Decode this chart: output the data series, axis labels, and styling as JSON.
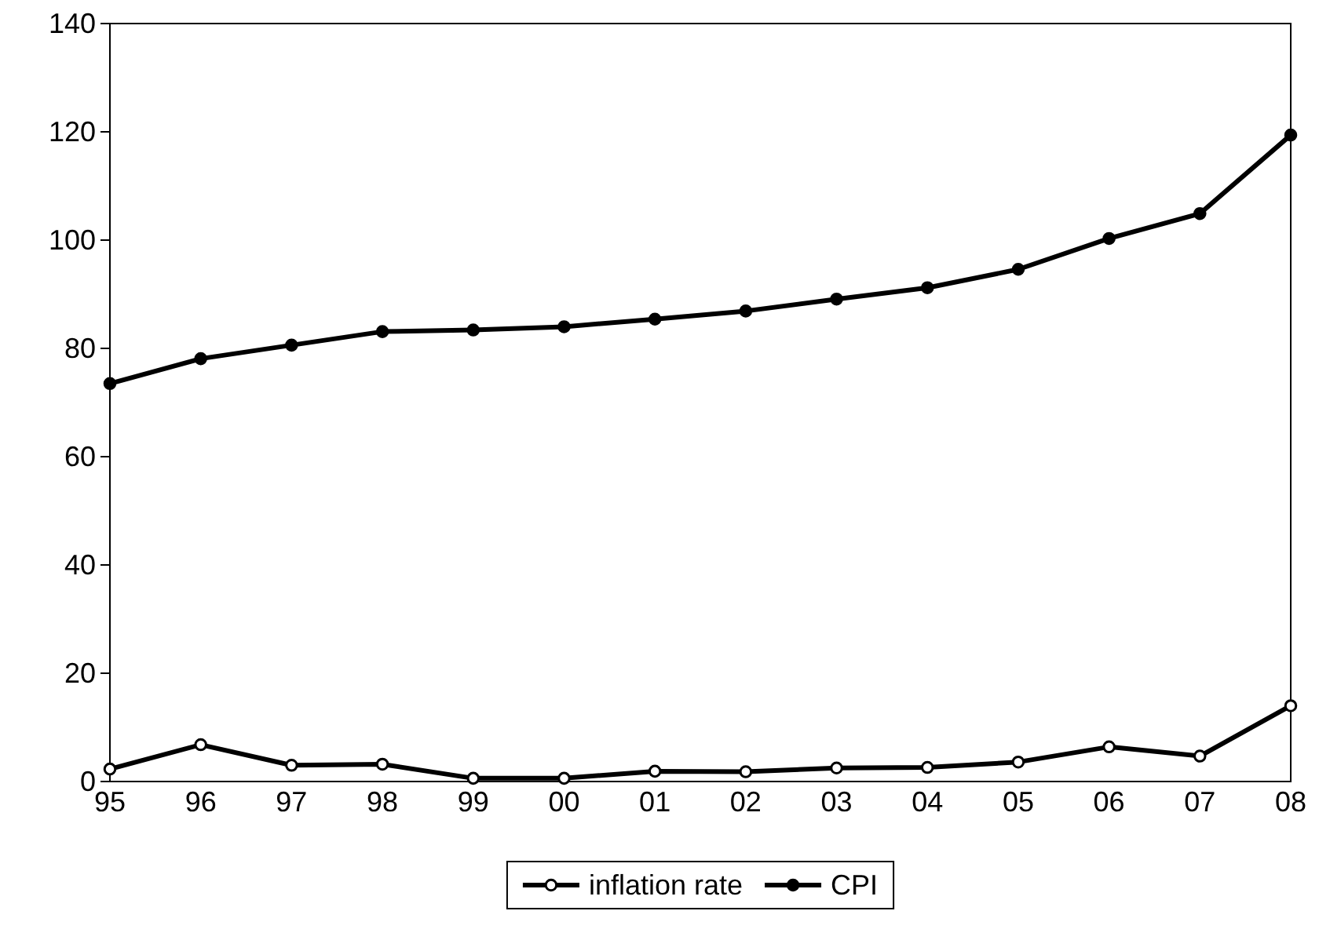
{
  "chart_data": {
    "type": "line",
    "categories": [
      "95",
      "96",
      "97",
      "98",
      "99",
      "00",
      "01",
      "02",
      "03",
      "04",
      "05",
      "06",
      "07",
      "08"
    ],
    "series": [
      {
        "name": "inflation rate",
        "color": "#000000",
        "marker": "circle",
        "values": [
          2.3,
          6.8,
          3.0,
          3.2,
          0.6,
          0.6,
          1.9,
          1.8,
          2.5,
          2.6,
          3.6,
          6.4,
          4.7,
          14.0
        ]
      },
      {
        "name": "CPI",
        "color": "#000000",
        "marker": "circle",
        "values": [
          73.5,
          78.1,
          80.6,
          83.1,
          83.4,
          84.0,
          85.4,
          86.9,
          89.1,
          91.2,
          94.6,
          100.3,
          104.9,
          119.4
        ]
      }
    ],
    "ylim": [
      0,
      140
    ],
    "yticks": [
      0,
      20,
      40,
      60,
      80,
      100,
      120,
      140
    ],
    "grid": false,
    "legend": "bottom",
    "line_style": "solid"
  }
}
